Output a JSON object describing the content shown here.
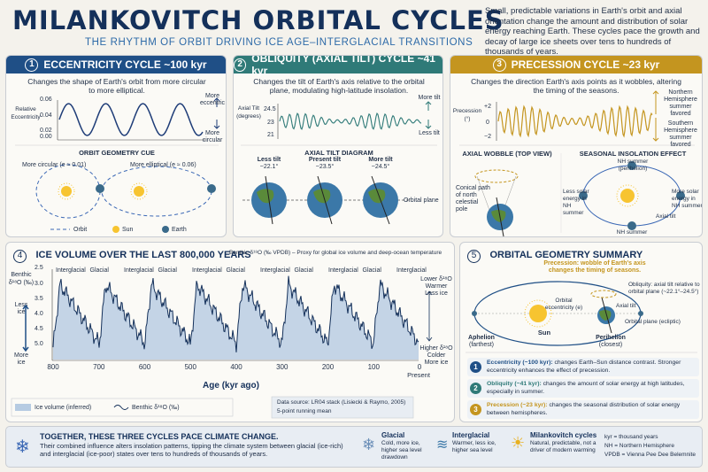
{
  "header": {
    "title": "MILANKOVITCH ORBITAL CYCLES",
    "subtitle": "THE RHYTHM OF ORBIT DRIVING ICE AGE–INTERGLACIAL TRANSITIONS",
    "intro": "Small, predictable variations in Earth's orbit and axial orientation change the amount and distribution of solar energy reaching Earth. These cycles pace the growth and decay of large ice sheets over tens to hundreds of thousands of years."
  },
  "ecc": {
    "num": "1",
    "title": "ECCENTRICITY CYCLE ~100 kyr",
    "desc": "Changes the shape of Earth's orbit from more circular to more elliptical.",
    "ylabel": "Relative Eccentricity",
    "ticks": [
      "0.06",
      "0.04",
      "0.02",
      "0.00"
    ],
    "more": "More eccentric",
    "less": "More circular",
    "section": "ORBIT GEOMETRY CUE",
    "circ": "More circular (e ≈ 0.01)",
    "ellip": "More elliptical (e ≈ 0.06)",
    "legend": [
      "Orbit",
      "Sun",
      "Earth"
    ]
  },
  "obl": {
    "num": "2",
    "title": "OBLIQUITY (AXIAL TILT) CYCLE ~41 kyr",
    "desc": "Changes the tilt of Earth's axis relative to the orbital plane, modulating high-latitude insolation.",
    "ylabel": "Axial Tilt (degrees)",
    "ticks": [
      "24.5",
      "23",
      "21"
    ],
    "more": "More tilt",
    "less": "Less tilt",
    "section": "AXIAL TILT DIAGRAM",
    "globes": [
      {
        "label": "Less tilt",
        "value": "~22.1°"
      },
      {
        "label": "Present tilt",
        "value": "~23.5°"
      },
      {
        "label": "More tilt",
        "value": "~24.5°"
      }
    ],
    "plane": "Orbital plane"
  },
  "prec": {
    "num": "3",
    "title": "PRECESSION CYCLE ~23 kyr",
    "desc": "Changes the direction Earth's axis points as it wobbles, altering the timing of the seasons.",
    "ylabel": "Precession (°)",
    "ticks": [
      "+2",
      "0",
      "−2"
    ],
    "north": "Northern Hemisphere summer favored",
    "south": "Southern Hemisphere summer favored",
    "sec1": "AXIAL WOBBLE (TOP VIEW)",
    "sec2": "SEASONAL INSOLATION EFFECT",
    "cone": "Conical path of north celestial pole",
    "nh_peri": "NH summer (perihelion)",
    "less_solar": "Less solar energy in NH summer",
    "more_solar": "More solar energy in NH summer",
    "axial": "Axial tilt",
    "nh_aph": "NH summer (aphelion)"
  },
  "ice": {
    "num": "4",
    "title": "ICE VOLUME OVER THE LAST 800,000 YEARS",
    "note": "Benthic δ¹⁸O (‰ VPDB) – Proxy for global ice volume and deep-ocean temperature",
    "ylabel": "Benthic δ¹⁸O (‰)",
    "ticks": [
      "3.0",
      "3.5",
      "4.0",
      "4.5",
      "5.0"
    ],
    "top_tick": "2.5",
    "less_ice": "Less ice",
    "more_ice": "More ice",
    "lower": "Lower δ¹⁸O",
    "warmer": "Warmer",
    "lessice2": "Less ice",
    "higher": "Higher δ¹⁸O",
    "colder": "Colder",
    "moreice2": "More ice",
    "xticks": [
      "800",
      "700",
      "600",
      "500",
      "400",
      "300",
      "200",
      "100",
      "0"
    ],
    "present": "Present",
    "xlabel": "Age (kyr ago)",
    "labels": [
      "Interglacial",
      "Glacial",
      "Interglacial",
      "Glacial",
      "Interglacial",
      "Glacial",
      "Interglacial",
      "Glacial",
      "Interglacial",
      "Glacial",
      "Interglacial"
    ],
    "legend_ice": "Ice volume (inferred)",
    "legend_line": "Benthic δ¹⁸O (‰)",
    "source": "Data source: LR04 stack (Lisiecki & Raymo, 2005)",
    "smoothing": "5-point running mean"
  },
  "summary": {
    "num": "5",
    "title": "ORBITAL GEOMETRY SUMMARY",
    "precession": "Precession: wobble of Earth's axis changes the timing of seasons.",
    "obliquity": "Obliquity: axial tilt relative to orbital plane (~22.1°–24.5°)",
    "ecc": "Orbital eccentricity (e)",
    "axial": "Axial tilt",
    "plane": "Orbital plane (ecliptic)",
    "sun": "Sun",
    "aphelion": "Aphelion",
    "aph_sub": "(farthest)",
    "perihelion": "Perihelion",
    "peri_sub": "(closest)",
    "items": [
      {
        "n": "1",
        "head": "Eccentricity (~100 kyr):",
        "text": "changes Earth–Sun distance contrast. Stronger eccentricity enhances the effect of precession."
      },
      {
        "n": "2",
        "head": "Obliquity (~41 kyr):",
        "text": "changes the amount of solar energy at high latitudes, especially in summer."
      },
      {
        "n": "3",
        "head": "Precession (~23 kyr):",
        "text": "changes the seasonal distribution of solar energy between hemispheres."
      }
    ]
  },
  "bottom": {
    "head": "TOGETHER, THESE THREE CYCLES PACE CLIMATE CHANGE.",
    "text": "Their combined influence alters insolation patterns, tipping the climate system between glacial (ice-rich) and interglacial (ice-poor) states over tens to hundreds of thousands of years.",
    "glacial_h": "Glacial",
    "glacial_t": "Cold, more ice, higher sea level drawdown",
    "inter_h": "Interglacial",
    "inter_t": "Warmer, less ice, higher sea level",
    "mil_h": "Milankovitch cycles",
    "mil_t": "Natural, predictable, not a driver of modern warming",
    "abbr": [
      "kyr = thousand years",
      "NH = Northern Hemisphere",
      "VPDB = Vienna Pee Dee Belemnite"
    ]
  },
  "colors": {
    "ecc": "#1f4f86",
    "obl": "#2f7a78",
    "prec": "#c4951f",
    "navy": "#14305a"
  }
}
